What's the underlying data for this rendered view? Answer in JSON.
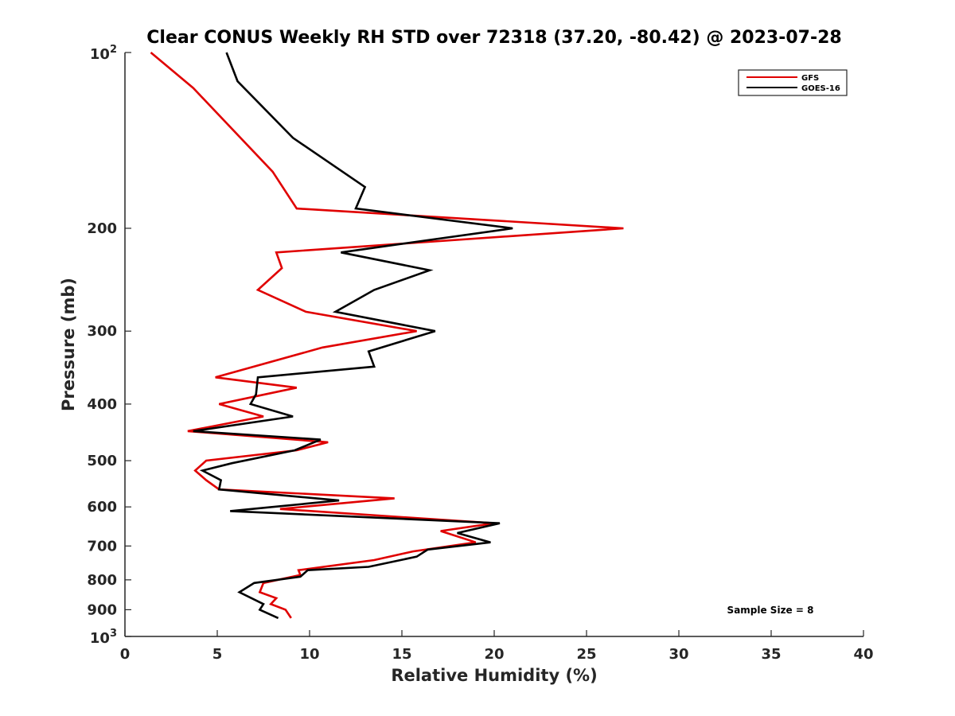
{
  "chart_data": {
    "type": "line",
    "title": "Clear CONUS Weekly RH STD over 72318 (37.20, -80.42) @ 2023-07-28",
    "xlabel": "Relative Humidity (%)",
    "ylabel": "Pressure (mb)",
    "xlim": [
      0,
      40
    ],
    "ylim": [
      100,
      1000
    ],
    "y_scale": "log",
    "y_reversed": true,
    "x_ticks": [
      "0",
      "5",
      "10",
      "15",
      "20",
      "25",
      "30",
      "35",
      "40"
    ],
    "y_ticks": [
      {
        "value": 100,
        "base": "10",
        "exp": "2"
      },
      {
        "value": 200,
        "label": "200"
      },
      {
        "value": 300,
        "label": "300"
      },
      {
        "value": 400,
        "label": "400"
      },
      {
        "value": 500,
        "label": "500"
      },
      {
        "value": 600,
        "label": "600"
      },
      {
        "value": 700,
        "label": "700"
      },
      {
        "value": 800,
        "label": "800"
      },
      {
        "value": 900,
        "label": "900"
      },
      {
        "value": 1000,
        "base": "10",
        "exp": "3"
      }
    ],
    "legend_position": "top-right",
    "annotation": "Sample Size = 8",
    "series": [
      {
        "name": "GFS",
        "color": "#e00000",
        "x": [
          1.4,
          3.7,
          8.0,
          9.3,
          27.0,
          8.2,
          8.5,
          7.2,
          9.8,
          15.8,
          10.7,
          4.9,
          9.3,
          5.1,
          7.5,
          3.4,
          11.0,
          9.3,
          4.4,
          3.8,
          4.4,
          5.1,
          14.6,
          8.4,
          20.0,
          17.1,
          19.0,
          15.6,
          13.5,
          9.4,
          9.5,
          7.5,
          7.3,
          8.2,
          7.9,
          8.7,
          9.0
        ],
        "y": [
          100,
          115,
          160,
          185,
          200,
          220,
          234,
          255,
          278,
          300,
          320,
          360,
          375,
          400,
          420,
          445,
          465,
          480,
          500,
          520,
          540,
          560,
          580,
          605,
          640,
          660,
          690,
          715,
          740,
          770,
          785,
          810,
          840,
          860,
          880,
          900,
          930
        ]
      },
      {
        "name": "GOES-16",
        "color": "#000000",
        "x": [
          5.5,
          6.1,
          9.1,
          13.0,
          12.5,
          21.0,
          11.7,
          16.5,
          13.5,
          11.4,
          16.8,
          13.2,
          13.5,
          7.2,
          7.1,
          6.8,
          9.1,
          3.7,
          10.6,
          9.2,
          5.8,
          4.2,
          5.2,
          5.1,
          11.6,
          5.7,
          20.3,
          18.0,
          19.8,
          16.4,
          15.8,
          13.2,
          9.9,
          9.5,
          7.0,
          6.2,
          7.5,
          7.3,
          8.3
        ],
        "y": [
          100,
          112,
          140,
          170,
          185,
          200,
          220,
          236,
          255,
          278,
          300,
          325,
          345,
          360,
          385,
          400,
          420,
          445,
          460,
          480,
          505,
          520,
          540,
          560,
          585,
          610,
          640,
          665,
          690,
          710,
          730,
          760,
          770,
          790,
          810,
          840,
          880,
          900,
          930
        ]
      }
    ]
  }
}
